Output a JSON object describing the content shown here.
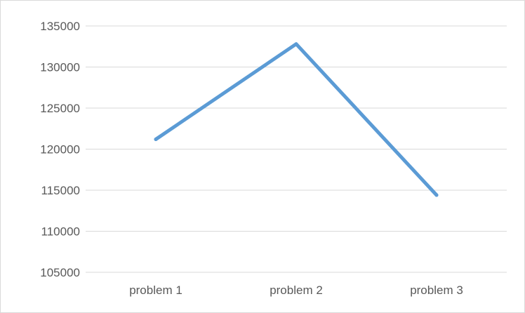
{
  "chart_data": {
    "type": "line",
    "title": "",
    "xlabel": "",
    "ylabel": "",
    "categories": [
      "problem 1",
      "problem 2",
      "problem 3"
    ],
    "series": [
      {
        "values": [
          121200,
          132800,
          114400
        ],
        "color": "#5b9bd5"
      }
    ],
    "ylim": [
      105000,
      135000
    ],
    "yticks": [
      105000,
      110000,
      115000,
      120000,
      125000,
      130000,
      135000
    ],
    "ytick_labels": [
      "105000",
      "110000",
      "115000",
      "120000",
      "125000",
      "130000",
      "135000"
    ],
    "grid": true,
    "gridline_color": "#d9d9d9",
    "legend": "none"
  }
}
